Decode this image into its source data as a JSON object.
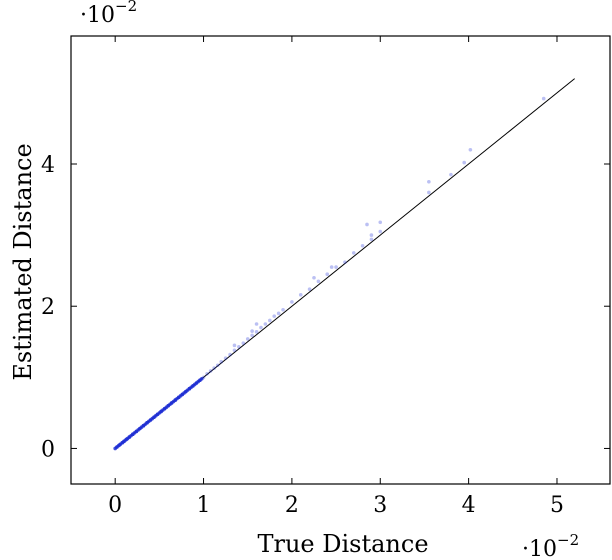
{
  "chart_data": {
    "type": "scatter",
    "title": "",
    "xlabel": "True Distance",
    "ylabel": "Estimated Distance",
    "x_scale_label": {
      "base": "·10",
      "exponent": "−2"
    },
    "y_scale_label": {
      "base": "·10",
      "exponent": "−2"
    },
    "xlim": [
      -0.5,
      5.6
    ],
    "ylim": [
      -0.5,
      5.8
    ],
    "x_ticks": [
      {
        "value": 0,
        "label": "0"
      },
      {
        "value": 1,
        "label": "1"
      },
      {
        "value": 2,
        "label": "2"
      },
      {
        "value": 3,
        "label": "3"
      },
      {
        "value": 4,
        "label": "4"
      },
      {
        "value": 5,
        "label": "5"
      }
    ],
    "y_ticks": [
      {
        "value": 0,
        "label": "0"
      },
      {
        "value": 2,
        "label": "2"
      },
      {
        "value": 4,
        "label": "4"
      }
    ],
    "grid": false,
    "reference_line": {
      "x": [
        0,
        5.2
      ],
      "y": [
        0,
        5.2
      ],
      "color": "#000000"
    },
    "series": [
      {
        "color": "#1f2fd6",
        "points": [
          [
            0.02,
            0.02
          ],
          [
            0.05,
            0.05
          ],
          [
            0.08,
            0.08
          ],
          [
            0.1,
            0.1
          ],
          [
            0.13,
            0.13
          ],
          [
            0.16,
            0.16
          ],
          [
            0.2,
            0.2
          ],
          [
            0.24,
            0.24
          ],
          [
            0.28,
            0.28
          ],
          [
            0.32,
            0.32
          ],
          [
            0.36,
            0.36
          ],
          [
            0.4,
            0.4
          ],
          [
            0.44,
            0.44
          ],
          [
            0.48,
            0.48
          ],
          [
            0.52,
            0.52
          ],
          [
            0.56,
            0.56
          ],
          [
            0.6,
            0.6
          ],
          [
            0.64,
            0.64
          ],
          [
            0.68,
            0.68
          ],
          [
            0.72,
            0.72
          ],
          [
            0.76,
            0.76
          ],
          [
            0.8,
            0.8
          ],
          [
            0.84,
            0.84
          ],
          [
            0.88,
            0.88
          ],
          [
            0.92,
            0.92
          ],
          [
            0.96,
            0.96
          ],
          [
            1.0,
            1.0
          ],
          [
            1.04,
            1.05
          ],
          [
            1.08,
            1.09
          ],
          [
            1.12,
            1.13
          ],
          [
            1.16,
            1.17
          ],
          [
            1.2,
            1.22
          ],
          [
            1.25,
            1.27
          ],
          [
            1.3,
            1.32
          ],
          [
            1.35,
            1.38
          ],
          [
            1.4,
            1.43
          ],
          [
            1.45,
            1.48
          ],
          [
            1.5,
            1.54
          ],
          [
            1.55,
            1.59
          ],
          [
            1.6,
            1.64
          ],
          [
            1.65,
            1.7
          ],
          [
            1.7,
            1.75
          ],
          [
            1.75,
            1.8
          ],
          [
            1.8,
            1.86
          ],
          [
            1.85,
            1.9
          ],
          [
            1.9,
            1.95
          ],
          [
            2.0,
            2.06
          ],
          [
            2.1,
            2.16
          ],
          [
            2.2,
            2.24
          ],
          [
            2.3,
            2.35
          ],
          [
            2.4,
            2.45
          ],
          [
            2.5,
            2.55
          ],
          [
            2.6,
            2.62
          ],
          [
            2.7,
            2.75
          ],
          [
            2.8,
            2.85
          ],
          [
            2.9,
            2.94
          ],
          [
            2.9,
            3.0
          ],
          [
            3.0,
            3.05
          ],
          [
            1.35,
            1.45
          ],
          [
            1.55,
            1.65
          ],
          [
            1.6,
            1.75
          ],
          [
            2.25,
            2.4
          ],
          [
            2.45,
            2.55
          ],
          [
            2.85,
            3.15
          ],
          [
            3.0,
            3.18
          ],
          [
            3.55,
            3.6
          ],
          [
            3.55,
            3.75
          ],
          [
            3.8,
            3.85
          ],
          [
            3.95,
            4.02
          ],
          [
            4.02,
            4.2
          ],
          [
            4.85,
            4.92
          ]
        ]
      }
    ]
  }
}
